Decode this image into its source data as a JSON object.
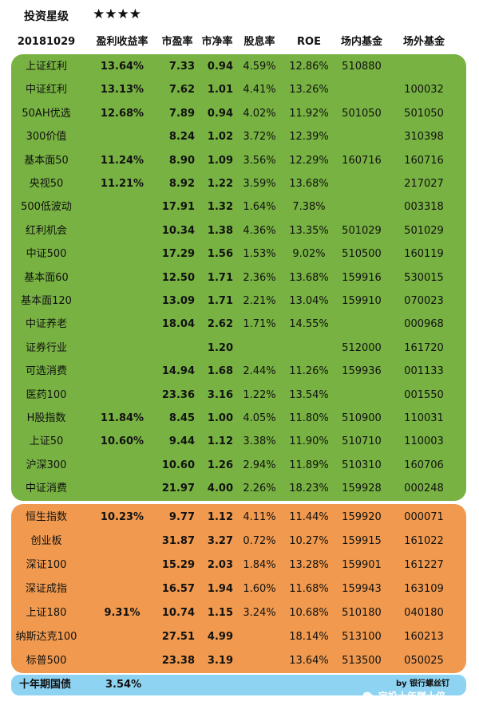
{
  "header": {
    "rating_label": "投资星级",
    "stars": "★★★★",
    "date": "20181029",
    "columns": [
      "盈利收益率",
      "市盈率",
      "市净率",
      "股息率",
      "ROE",
      "场内基金",
      "场外基金"
    ]
  },
  "rows": [
    [
      "上证红利",
      "13.64%",
      "7.33",
      "0.94",
      "4.59%",
      "12.86%",
      "510880",
      ""
    ],
    [
      "中证红利",
      "13.13%",
      "7.62",
      "1.01",
      "4.41%",
      "13.26%",
      "",
      "100032"
    ],
    [
      "50AH优选",
      "12.68%",
      "7.89",
      "0.94",
      "4.02%",
      "11.92%",
      "501050",
      "501050"
    ],
    [
      "300价值",
      "",
      "8.24",
      "1.02",
      "3.72%",
      "12.39%",
      "",
      "310398"
    ],
    [
      "基本面50",
      "11.24%",
      "8.90",
      "1.09",
      "3.56%",
      "12.29%",
      "160716",
      "160716"
    ],
    [
      "央视50",
      "11.21%",
      "8.92",
      "1.22",
      "3.59%",
      "13.68%",
      "",
      "217027"
    ],
    [
      "500低波动",
      "",
      "17.91",
      "1.32",
      "1.64%",
      "7.38%",
      "",
      "003318"
    ],
    [
      "红利机会",
      "",
      "10.34",
      "1.38",
      "4.36%",
      "13.35%",
      "501029",
      "501029"
    ],
    [
      "中证500",
      "",
      "17.29",
      "1.56",
      "1.53%",
      "9.02%",
      "510500",
      "160119"
    ],
    [
      "基本面60",
      "",
      "12.50",
      "1.71",
      "2.36%",
      "13.68%",
      "159916",
      "530015"
    ],
    [
      "基本面120",
      "",
      "13.09",
      "1.71",
      "2.21%",
      "13.04%",
      "159910",
      "070023"
    ],
    [
      "中证养老",
      "",
      "18.04",
      "2.62",
      "1.71%",
      "14.55%",
      "",
      "000968"
    ],
    [
      "证券行业",
      "",
      "",
      "1.20",
      "",
      "",
      "512000",
      "161720"
    ],
    [
      "可选消费",
      "",
      "14.94",
      "1.68",
      "2.44%",
      "11.26%",
      "159936",
      "001133"
    ],
    [
      "医药100",
      "",
      "23.36",
      "3.16",
      "1.22%",
      "13.54%",
      "",
      "001550"
    ],
    [
      "H股指数",
      "11.84%",
      "8.45",
      "1.00",
      "4.05%",
      "11.80%",
      "510900",
      "110031"
    ],
    [
      "上证50",
      "10.60%",
      "9.44",
      "1.12",
      "3.38%",
      "11.90%",
      "510710",
      "110003"
    ],
    [
      "沪深300",
      "",
      "10.60",
      "1.26",
      "2.94%",
      "11.89%",
      "510310",
      "160706"
    ],
    [
      "中证消费",
      "",
      "21.97",
      "4.00",
      "2.26%",
      "18.23%",
      "159928",
      "000248"
    ],
    [
      "恒生指数",
      "10.23%",
      "9.77",
      "1.12",
      "4.11%",
      "11.44%",
      "159920",
      "000071"
    ],
    [
      "创业板",
      "",
      "31.87",
      "3.27",
      "0.72%",
      "10.27%",
      "159915",
      "161022"
    ],
    [
      "深证100",
      "",
      "15.29",
      "2.03",
      "1.84%",
      "13.28%",
      "159901",
      "161227"
    ],
    [
      "深证成指",
      "",
      "16.57",
      "1.94",
      "1.60%",
      "11.68%",
      "159943",
      "163109"
    ],
    [
      "上证180",
      "9.31%",
      "10.74",
      "1.15",
      "3.24%",
      "10.68%",
      "510180",
      "040180"
    ],
    [
      "纳斯达克100",
      "",
      "27.51",
      "4.99",
      "",
      "18.14%",
      "513100",
      "160213"
    ],
    [
      "标普500",
      "",
      "23.38",
      "3.19",
      "",
      "13.64%",
      "513500",
      "050025"
    ]
  ],
  "bond": {
    "label": "十年期国债",
    "value": "3.54%"
  },
  "byline": "by 银行螺丝钉",
  "watermark": "定投十年赚十倍",
  "colors": {
    "green": "#78b242",
    "orange": "#f19a4f",
    "blue": "#8ed3f2"
  },
  "icons": {
    "watermark": "wechat-icon"
  }
}
